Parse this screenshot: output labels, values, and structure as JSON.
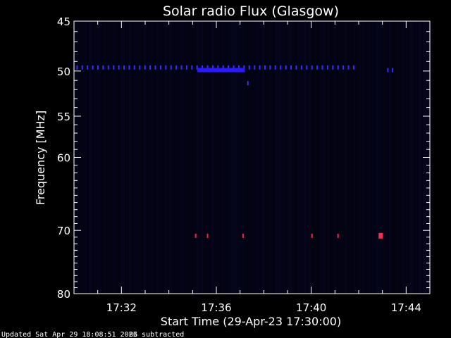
{
  "chart_data": {
    "type": "heatmap",
    "title": "Solar radio Flux (Glasgow)",
    "xlabel": "Start Time (29-Apr-23 17:30:00)",
    "ylabel": "Frequency [MHz]",
    "x_unit": "minutes after 17:30",
    "xlim": [
      0,
      15
    ],
    "ylim": [
      45,
      80
    ],
    "y_scale": "log",
    "y_inverted": true,
    "x_ticks": [
      {
        "value": 2,
        "label": "17:32"
      },
      {
        "value": 6,
        "label": "17:36"
      },
      {
        "value": 10,
        "label": "17:40"
      },
      {
        "value": 14,
        "label": "17:44"
      }
    ],
    "y_ticks": [
      {
        "value": 45,
        "label": "45"
      },
      {
        "value": 50,
        "label": "50"
      },
      {
        "value": 55,
        "label": "55"
      },
      {
        "value": 60,
        "label": "60"
      },
      {
        "value": 70,
        "label": "70"
      },
      {
        "value": 80,
        "label": "80"
      }
    ],
    "background_color": "#04041a",
    "features": [
      {
        "kind": "dotted_line",
        "freq": 49.7,
        "t_start": 0.1,
        "t_end": 11.8,
        "color": "#3a2aff"
      },
      {
        "kind": "band",
        "freq": 49.9,
        "t_start": 5.2,
        "t_end": 7.2,
        "color": "#2a18ff"
      },
      {
        "kind": "dots",
        "freq": 49.9,
        "times": [
          13.2,
          13.4
        ],
        "color": "#3a2aff"
      },
      {
        "kind": "dots",
        "freq": 51.3,
        "times": [
          7.3
        ],
        "color": "#3a2aff"
      },
      {
        "kind": "dots",
        "freq": 70.8,
        "times": [
          5.1,
          5.6,
          7.1,
          10.0,
          11.1
        ],
        "color": "#ff2040"
      },
      {
        "kind": "spot",
        "freq": 70.8,
        "times": [
          12.9
        ],
        "color": "#ff2a50"
      }
    ]
  },
  "footer": {
    "updated": "Updated Sat Apr 29 18:08:51 2023",
    "bg": "BG subtracted"
  }
}
